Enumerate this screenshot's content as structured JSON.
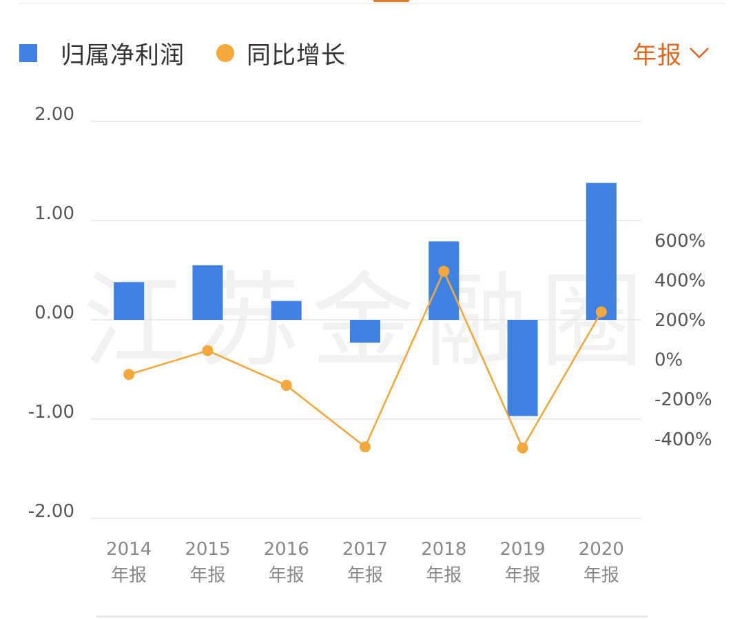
{
  "legend": {
    "bar_label": "归属净利润",
    "line_label": "同比增长"
  },
  "period_selector": {
    "label": "年报",
    "icon": "chevron-down-icon"
  },
  "watermark": "江苏金融圈",
  "colors": {
    "bar": "#3f82e4",
    "line": "#f2a83b",
    "accent": "#e06a24",
    "grid": "#e6e6e6",
    "tick": "#555555",
    "xtick": "#888888"
  },
  "chart_data": {
    "type": "bar",
    "categories": [
      "2014",
      "2015",
      "2016",
      "2017",
      "2018",
      "2019",
      "2020"
    ],
    "category_sublabel": "年报",
    "series": [
      {
        "name": "归属净利润",
        "type": "bar",
        "axis": "left",
        "values": [
          0.38,
          0.55,
          0.19,
          -0.23,
          0.79,
          -0.97,
          1.38
        ]
      },
      {
        "name": "同比增长",
        "type": "line",
        "axis": "right",
        "values": [
          -75,
          45,
          -130,
          -440,
          445,
          -445,
          240
        ]
      }
    ],
    "y_left": {
      "ylim": [
        -2,
        2
      ],
      "ticks": [
        2,
        1,
        0,
        -1,
        -2
      ],
      "tick_labels": [
        "2.00",
        "1.00",
        "0.00",
        "-1.00",
        "-2.00"
      ]
    },
    "y_right": {
      "ylim": [
        -800,
        1200
      ],
      "ticks": [
        600,
        400,
        200,
        0,
        -200,
        -400
      ],
      "tick_labels": [
        "600%",
        "400%",
        "200%",
        "0%",
        "-200%",
        "-400%"
      ]
    },
    "grid": true,
    "legend_position": "top-left"
  }
}
